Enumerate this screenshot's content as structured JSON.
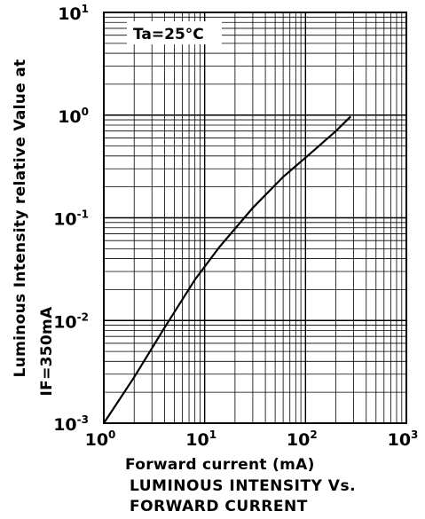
{
  "chart_data": {
    "type": "line",
    "x_scale": "log",
    "y_scale": "log",
    "xlim": [
      1,
      1000
    ],
    "ylim": [
      0.001,
      10
    ],
    "x_ticks": [
      {
        "value": 1,
        "base": "10",
        "exp": "0"
      },
      {
        "value": 10,
        "base": "10",
        "exp": "1"
      },
      {
        "value": 100,
        "base": "10",
        "exp": "2"
      },
      {
        "value": 1000,
        "base": "10",
        "exp": "3"
      }
    ],
    "y_ticks": [
      {
        "value": 10,
        "base": "10",
        "exp": "1"
      },
      {
        "value": 1,
        "base": "10",
        "exp": "0"
      },
      {
        "value": 0.1,
        "base": "10",
        "exp": "-1"
      },
      {
        "value": 0.01,
        "base": "10",
        "exp": "-2"
      },
      {
        "value": 0.001,
        "base": "10",
        "exp": "-3"
      }
    ],
    "xlabel": "Forward current (mA)",
    "ylabel_line1": "Luminous Intensity relative Value at",
    "ylabel_line2": "IF=350mA",
    "annotation": "Ta=25°C",
    "grid": true,
    "series": [
      {
        "x": [
          1,
          2,
          4,
          8,
          14,
          30,
          60,
          120,
          200,
          280
        ],
        "y": [
          0.001,
          0.0028,
          0.0085,
          0.025,
          0.052,
          0.125,
          0.25,
          0.45,
          0.7,
          0.97
        ]
      }
    ]
  },
  "caption": {
    "line1": "LUMINOUS INTENSITY Vs.",
    "line2": "FORWARD CURRENT"
  }
}
